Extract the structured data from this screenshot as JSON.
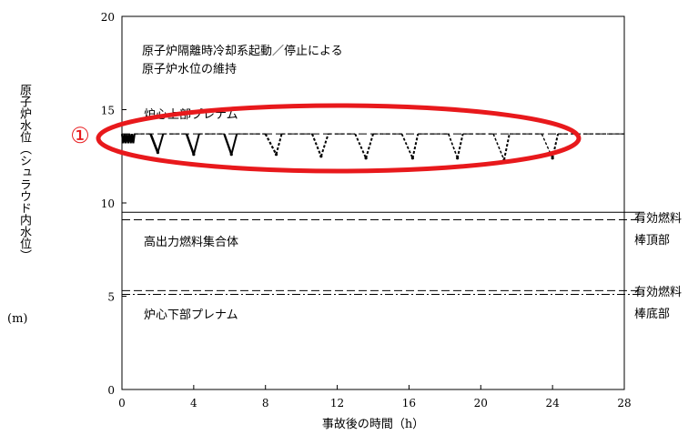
{
  "chart_data": {
    "type": "line",
    "ylabel": "原子炉水位（シュラウド内水位）",
    "yunit": "(m)",
    "xlabel": "事故後の時間（h）",
    "xlim": [
      0,
      28
    ],
    "ylim": [
      0,
      20
    ],
    "xticks": [
      0,
      4,
      8,
      12,
      16,
      20,
      24,
      28
    ],
    "yticks": [
      0,
      5,
      10,
      15,
      20
    ],
    "grid": false,
    "reference_lines": [
      {
        "name": "upper_plenum_top",
        "y": 13.7,
        "style": "dashed"
      },
      {
        "name": "high_power_fuel_top",
        "y": 9.5,
        "style": "solid"
      },
      {
        "name": "fuel_top",
        "y": 9.1,
        "style": "dashed"
      },
      {
        "name": "fuel_bottom",
        "y": 5.3,
        "style": "dashed"
      },
      {
        "name": "lower_plenum_top",
        "y": 5.1,
        "style": "dashdot"
      }
    ],
    "series": [
      {
        "style": "dashed",
        "initial_oscillation": {
          "x_start": 0.0,
          "x_end": 0.7,
          "y_min": 13.2,
          "y_max": 13.7
        },
        "cycles": [
          {
            "start": 1.6,
            "min_x": 2.0,
            "min_y": 12.7,
            "end": 2.3
          },
          {
            "start": 3.6,
            "min_x": 4.0,
            "min_y": 12.6,
            "end": 4.3
          },
          {
            "start": 5.7,
            "min_x": 6.1,
            "min_y": 12.6,
            "end": 6.4
          },
          {
            "start": 8.0,
            "min_x": 8.6,
            "min_y": 12.6,
            "end": 8.9
          },
          {
            "start": 10.6,
            "min_x": 11.1,
            "min_y": 12.5,
            "end": 11.5
          },
          {
            "start": 13.0,
            "min_x": 13.6,
            "min_y": 12.4,
            "end": 14.0
          },
          {
            "start": 15.6,
            "min_x": 16.2,
            "min_y": 12.4,
            "end": 16.5
          },
          {
            "start": 18.2,
            "min_x": 18.7,
            "min_y": 12.4,
            "end": 19.0
          },
          {
            "start": 20.7,
            "min_x": 21.3,
            "min_y": 12.3,
            "end": 21.6
          },
          {
            "start": 23.4,
            "min_x": 24.0,
            "min_y": 12.4,
            "end": 24.3
          }
        ],
        "base_y": 13.7
      }
    ],
    "annotations": {
      "top_note_1": "原子炉隔離時冷却系起動／停止による",
      "top_note_2": "原子炉水位の維持",
      "upper_plenum": "炉心上部プレナム",
      "high_power": "高出力燃料集合体",
      "lower_plenum": "炉心下部プレナム",
      "fuel_top_1": "有効燃料",
      "fuel_top_2": "棒頂部",
      "fuel_bottom_1": "有効燃料",
      "fuel_bottom_2": "棒底部",
      "marker": "①"
    },
    "highlight_color": "#e8191c"
  }
}
